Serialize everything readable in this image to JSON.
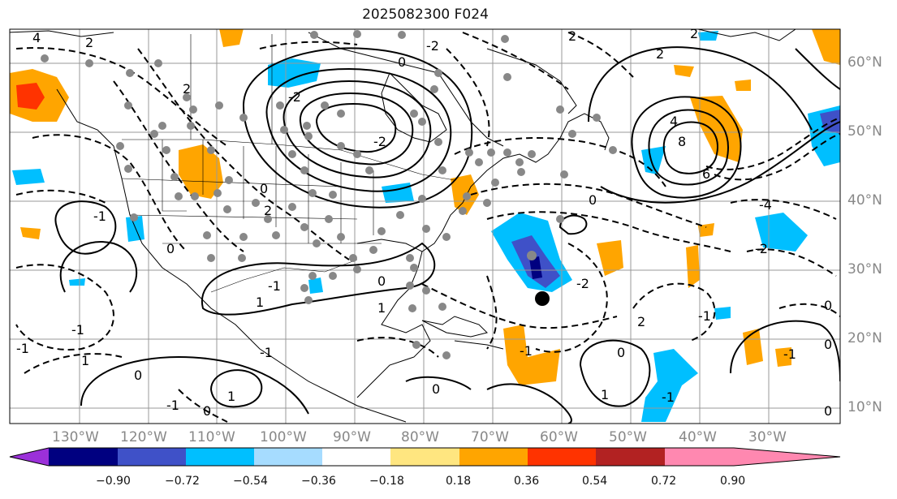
{
  "title": "2025082300 F024",
  "lon_labels": [
    "130°W",
    "120°W",
    "110°W",
    "100°W",
    "90°W",
    "80°W",
    "70°W",
    "60°W",
    "50°W",
    "40°W",
    "30°W"
  ],
  "lat_labels": [
    "60°N",
    "50°N",
    "40°N",
    "30°N",
    "20°N",
    "10°N"
  ],
  "colorbar": {
    "ticks": [
      "−0.90",
      "−0.72",
      "−0.54",
      "−0.36",
      "−0.18",
      "0.18",
      "0.36",
      "0.54",
      "0.72",
      "0.90"
    ],
    "colors": [
      "#9b30d9",
      "#000080",
      "#3f51c8",
      "#00bfff",
      "#a6dcff",
      "#ffffff",
      "#ffe680",
      "#ffa500",
      "#ff3300",
      "#b22222",
      "#ff88b0"
    ]
  },
  "contour_labels": [
    "4",
    "2",
    "0",
    "-2",
    "2",
    "-2",
    "0",
    "-2",
    "2",
    "2",
    "0",
    "-1",
    "0",
    "-1",
    "1",
    "1",
    "-1",
    "0",
    "1",
    "-1",
    "0",
    "-1",
    "1",
    "0",
    "-1",
    "0",
    "-2",
    "-1",
    "0",
    "4",
    "8",
    "6",
    "2",
    "-4",
    "-2",
    "0",
    "-1",
    "1",
    "2",
    "-1",
    "0",
    "-1",
    "2",
    "0"
  ],
  "markers": {
    "observation_color": "#888888",
    "storm_center_color": "#000000"
  }
}
